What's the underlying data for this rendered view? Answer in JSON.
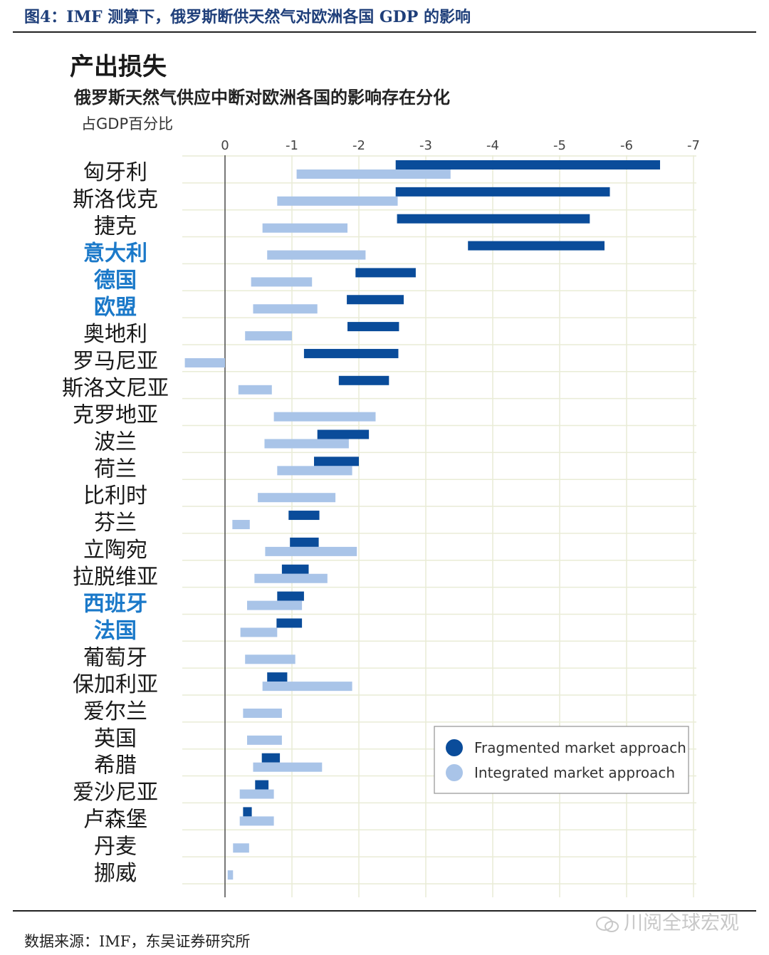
{
  "figure": {
    "label": "图4：IMF 测算下，俄罗斯断供天然气对欧洲各国 GDP 的影响",
    "source": "数据来源：IMF，东吴证券研究所",
    "watermark": "川阅全球宏观"
  },
  "colors": {
    "fragmented": "#0a4c9a",
    "integrated": "#a9c4e8",
    "highlight_label": "#1b79c9",
    "label": "#1a1a1a",
    "grid": "#e9ecd6",
    "zero_line": "#555555"
  },
  "chart_data": {
    "type": "bar",
    "orientation": "horizontal",
    "title": "产出损失",
    "subtitle": "俄罗斯天然气供应中断对欧洲各国的影响存在分化",
    "unit": "占GDP百分比",
    "xlim": [
      0.6,
      -7
    ],
    "x_ticks": [
      0,
      -1,
      -2,
      -3,
      -4,
      -5,
      -6,
      -7
    ],
    "grid": true,
    "legend_position": "lower-right",
    "categories": [
      "匈牙利",
      "斯洛伐克",
      "捷克",
      "意大利",
      "德国",
      "欧盟",
      "奥地利",
      "罗马尼亚",
      "斯洛文尼亚",
      "克罗地亚",
      "波兰",
      "荷兰",
      "比利时",
      "芬兰",
      "立陶宛",
      "拉脱维亚",
      "西班牙",
      "法国",
      "葡萄牙",
      "保加利亚",
      "爱尔兰",
      "英国",
      "希腊",
      "爱沙尼亚",
      "卢森堡",
      "丹麦",
      "挪威"
    ],
    "highlighted": [
      "意大利",
      "德国",
      "欧盟",
      "西班牙",
      "法国"
    ],
    "series": [
      {
        "name": "Fragmented market approach",
        "ranges": [
          [
            -2.55,
            -6.5
          ],
          [
            -2.55,
            -5.75
          ],
          [
            -2.57,
            -5.45
          ],
          [
            -3.63,
            -5.67
          ],
          [
            -1.95,
            -2.85
          ],
          [
            -1.82,
            -2.67
          ],
          [
            -1.83,
            -2.6
          ],
          [
            -1.18,
            -2.59
          ],
          [
            -1.7,
            -2.45
          ],
          null,
          [
            -1.38,
            -2.15
          ],
          [
            -1.33,
            -2.0
          ],
          null,
          [
            -0.95,
            -1.41
          ],
          [
            -0.97,
            -1.4
          ],
          [
            -0.85,
            -1.25
          ],
          [
            -0.78,
            -1.18
          ],
          [
            -0.77,
            -1.15
          ],
          null,
          [
            -0.63,
            -0.93
          ],
          null,
          null,
          [
            -0.55,
            -0.82
          ],
          [
            -0.45,
            -0.65
          ],
          [
            -0.27,
            -0.4
          ],
          null,
          null
        ]
      },
      {
        "name": "Integrated market approach",
        "ranges": [
          [
            -1.07,
            -3.37
          ],
          [
            -0.78,
            -2.58
          ],
          [
            -0.56,
            -1.83
          ],
          [
            -0.63,
            -2.1
          ],
          [
            -0.39,
            -1.3
          ],
          [
            -0.42,
            -1.38
          ],
          [
            -0.3,
            -1.0
          ],
          [
            0.6,
            0.0
          ],
          [
            -0.2,
            -0.7
          ],
          [
            -0.73,
            -2.25
          ],
          [
            -0.59,
            -1.85
          ],
          [
            -0.78,
            -1.9
          ],
          [
            -0.49,
            -1.65
          ],
          [
            -0.11,
            -0.37
          ],
          [
            -0.6,
            -1.97
          ],
          [
            -0.44,
            -1.53
          ],
          [
            -0.33,
            -1.15
          ],
          [
            -0.23,
            -0.78
          ],
          [
            -0.3,
            -1.05
          ],
          [
            -0.56,
            -1.9
          ],
          [
            -0.27,
            -0.85
          ],
          [
            -0.33,
            -0.85
          ],
          [
            -0.42,
            -1.45
          ],
          [
            -0.22,
            -0.73
          ],
          [
            -0.22,
            -0.73
          ],
          [
            -0.12,
            -0.36
          ],
          [
            -0.04,
            -0.12
          ]
        ]
      }
    ]
  }
}
